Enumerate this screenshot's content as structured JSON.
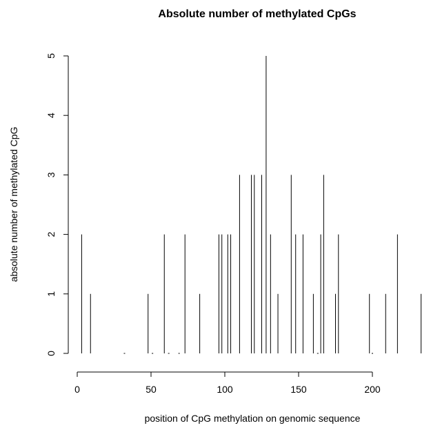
{
  "chart_data": {
    "type": "bar",
    "title": "Absolute number of methylated CpGs",
    "xlabel": "position of CpG methylation on genomic sequence",
    "ylabel": "absolute number of methylated CpG",
    "xlim": [
      -8,
      243
    ],
    "ylim": [
      -0.2,
      5.2
    ],
    "x_ticks": [
      0,
      50,
      100,
      150,
      200
    ],
    "y_ticks": [
      0,
      1,
      2,
      3,
      4,
      5
    ],
    "grid": false,
    "legend": "none",
    "x": [
      3,
      9,
      32,
      48,
      51,
      59,
      62,
      69,
      73,
      83,
      96,
      98,
      102,
      104,
      110,
      118,
      120,
      125,
      128,
      131,
      136,
      145,
      148,
      153,
      160,
      163,
      165,
      167,
      175,
      177,
      198,
      200,
      209,
      217,
      233
    ],
    "values": [
      2,
      1,
      0,
      1,
      0,
      2,
      0,
      0,
      2,
      1,
      2,
      2,
      2,
      2,
      3,
      3,
      3,
      3,
      5,
      2,
      1,
      3,
      2,
      2,
      1,
      0,
      2,
      3,
      1,
      2,
      1,
      0,
      1,
      2,
      1
    ]
  }
}
